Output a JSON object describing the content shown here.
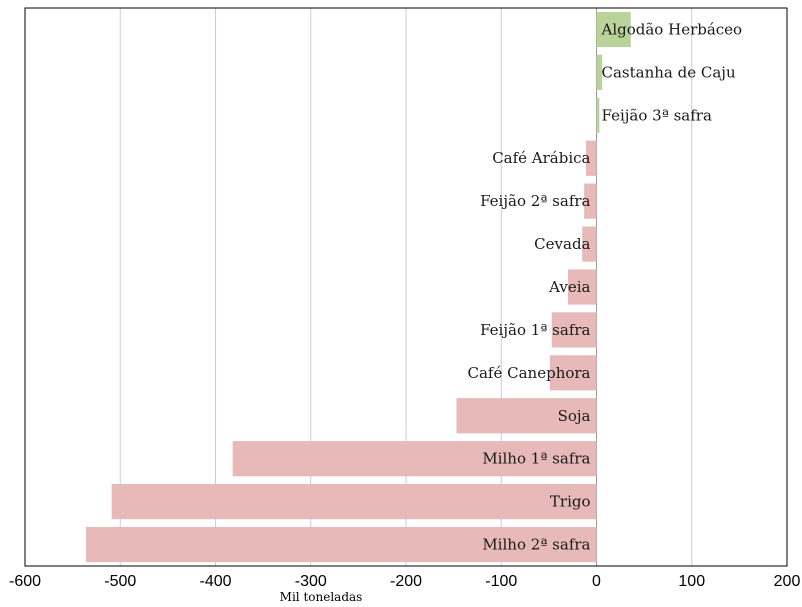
{
  "chart_data": {
    "type": "bar",
    "orientation": "horizontal",
    "xlabel": "Mil toneladas",
    "xlim": [
      -600,
      200
    ],
    "xticks": [
      -600,
      -500,
      -400,
      -300,
      -200,
      -100,
      0,
      100,
      200
    ],
    "grid": true,
    "categories": [
      "Algodão Herbáceo",
      "Castanha de Caju",
      "Feijão 3ª safra",
      "Café Arábica",
      "Feijão 2ª safra",
      "Cevada",
      "Aveia",
      "Feijão 1ª safra",
      "Café Canephora",
      "Soja",
      "Milho 1ª safra",
      "Trigo",
      "Milho 2ª safra"
    ],
    "values": [
      36,
      6,
      3,
      -11,
      -13,
      -15,
      -30,
      -47,
      -49,
      -147,
      -382,
      -509,
      -536
    ],
    "colors": {
      "positive": "#b9d39a",
      "negative": "#e7b9b9",
      "grid": "#c9c9ee"
    }
  }
}
